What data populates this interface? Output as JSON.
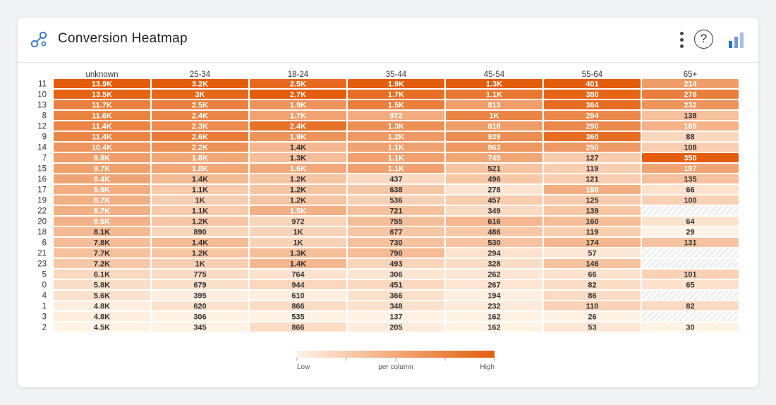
{
  "widget": {
    "title": "Conversion Heatmap",
    "help_label": "?",
    "logo_icon": "network-nodes-icon",
    "menu_icon": "kebab-menu-icon",
    "help_icon": "help-circle-icon",
    "chart_type_icon": "bar-chart-icon"
  },
  "colors": {
    "accent": "#e8590c",
    "low": "#fff3e6",
    "high": "#e35d0c",
    "empty_hatch": "#e6e6e6",
    "chart_icon_light": "#a7bde8",
    "chart_icon_dark": "#2f6fc7"
  },
  "chart_data": {
    "type": "heatmap",
    "title": "",
    "xlabel": "",
    "ylabel": "",
    "columns": [
      "unknown",
      "25-34",
      "18-24",
      "35-44",
      "45-54",
      "55-64",
      "65+"
    ],
    "rows": [
      "11",
      "10",
      "13",
      "8",
      "12",
      "9",
      "14",
      "7",
      "15",
      "16",
      "17",
      "19",
      "22",
      "20",
      "18",
      "6",
      "21",
      "23",
      "5",
      "0",
      "4",
      "1",
      "3",
      "2"
    ],
    "values": [
      [
        13900,
        3200,
        2500,
        1900,
        1300,
        401,
        214
      ],
      [
        13500,
        3000,
        2700,
        1700,
        1100,
        380,
        278
      ],
      [
        11700,
        2500,
        1900,
        1500,
        813,
        364,
        232
      ],
      [
        11600,
        2400,
        1700,
        972,
        1000,
        294,
        138
      ],
      [
        11400,
        2300,
        2400,
        1300,
        818,
        290,
        169
      ],
      [
        11400,
        2600,
        1900,
        1200,
        939,
        360,
        88
      ],
      [
        10400,
        2200,
        1400,
        1100,
        863,
        250,
        108
      ],
      [
        9800,
        1800,
        1300,
        1100,
        745,
        127,
        350
      ],
      [
        9700,
        1800,
        1600,
        1100,
        521,
        119,
        197
      ],
      [
        9400,
        1400,
        1200,
        437,
        496,
        121,
        135
      ],
      [
        8900,
        1100,
        1200,
        638,
        278,
        198,
        66
      ],
      [
        8700,
        1000,
        1200,
        536,
        457,
        125,
        100
      ],
      [
        8700,
        1100,
        1500,
        721,
        349,
        139,
        null
      ],
      [
        8500,
        1200,
        972,
        755,
        616,
        160,
        64
      ],
      [
        8100,
        890,
        1000,
        677,
        486,
        119,
        29
      ],
      [
        7800,
        1400,
        1000,
        730,
        530,
        174,
        131
      ],
      [
        7700,
        1200,
        1300,
        790,
        294,
        57,
        null
      ],
      [
        7200,
        1000,
        1400,
        493,
        328,
        146,
        null
      ],
      [
        6100,
        775,
        764,
        306,
        262,
        66,
        101
      ],
      [
        5800,
        679,
        944,
        451,
        267,
        82,
        65
      ],
      [
        5600,
        395,
        610,
        366,
        194,
        86,
        null
      ],
      [
        4800,
        620,
        866,
        348,
        232,
        110,
        82
      ],
      [
        4800,
        306,
        535,
        137,
        162,
        26,
        null
      ],
      [
        4500,
        345,
        866,
        205,
        162,
        53,
        30
      ]
    ],
    "labels": [
      [
        "13.9K",
        "3.2K",
        "2.5K",
        "1.9K",
        "1.3K",
        "401",
        "214"
      ],
      [
        "13.5K",
        "3K",
        "2.7K",
        "1.7K",
        "1.1K",
        "380",
        "278"
      ],
      [
        "11.7K",
        "2.5K",
        "1.9K",
        "1.5K",
        "813",
        "364",
        "232"
      ],
      [
        "11.6K",
        "2.4K",
        "1.7K",
        "972",
        "1K",
        "294",
        "138"
      ],
      [
        "11.4K",
        "2.3K",
        "2.4K",
        "1.3K",
        "818",
        "290",
        "169"
      ],
      [
        "11.4K",
        "2.6K",
        "1.9K",
        "1.2K",
        "939",
        "360",
        "88"
      ],
      [
        "10.4K",
        "2.2K",
        "1.4K",
        "1.1K",
        "863",
        "250",
        "108"
      ],
      [
        "9.8K",
        "1.8K",
        "1.3K",
        "1.1K",
        "745",
        "127",
        "350"
      ],
      [
        "9.7K",
        "1.8K",
        "1.6K",
        "1.1K",
        "521",
        "119",
        "197"
      ],
      [
        "9.4K",
        "1.4K",
        "1.2K",
        "437",
        "496",
        "121",
        "135"
      ],
      [
        "8.9K",
        "1.1K",
        "1.2K",
        "638",
        "278",
        "198",
        "66"
      ],
      [
        "8.7K",
        "1K",
        "1.2K",
        "536",
        "457",
        "125",
        "100"
      ],
      [
        "8.7K",
        "1.1K",
        "1.5K",
        "721",
        "349",
        "139",
        ""
      ],
      [
        "8.5K",
        "1.2K",
        "972",
        "755",
        "616",
        "160",
        "64"
      ],
      [
        "8.1K",
        "890",
        "1K",
        "677",
        "486",
        "119",
        "29"
      ],
      [
        "7.8K",
        "1.4K",
        "1K",
        "730",
        "530",
        "174",
        "131"
      ],
      [
        "7.7K",
        "1.2K",
        "1.3K",
        "790",
        "294",
        "57",
        ""
      ],
      [
        "7.2K",
        "1K",
        "1.4K",
        "493",
        "328",
        "146",
        ""
      ],
      [
        "6.1K",
        "775",
        "764",
        "306",
        "262",
        "66",
        "101"
      ],
      [
        "5.8K",
        "679",
        "944",
        "451",
        "267",
        "82",
        "65"
      ],
      [
        "5.6K",
        "395",
        "610",
        "366",
        "194",
        "86",
        ""
      ],
      [
        "4.8K",
        "620",
        "866",
        "348",
        "232",
        "110",
        "82"
      ],
      [
        "4.8K",
        "306",
        "535",
        "137",
        "162",
        "26",
        ""
      ],
      [
        "4.5K",
        "345",
        "866",
        "205",
        "162",
        "53",
        "30"
      ]
    ],
    "legend": {
      "low_label": "Low",
      "mid_label": "per column",
      "high_label": "High",
      "scale": "per column"
    }
  }
}
